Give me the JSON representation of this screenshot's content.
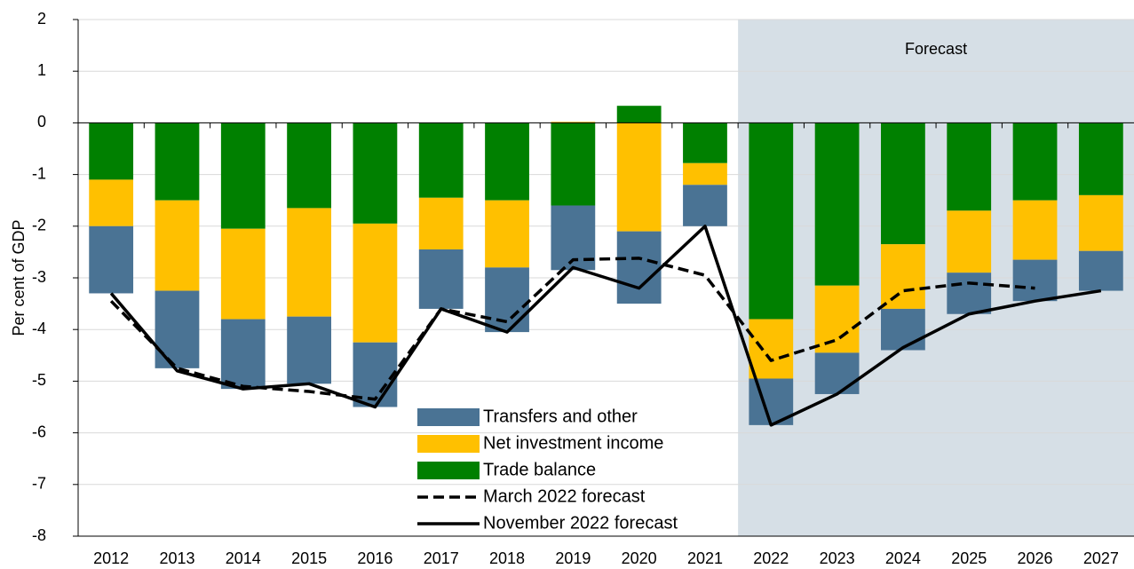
{
  "chart_data": {
    "type": "bar",
    "y_label": "Per cent of GDP",
    "annotation": "Forecast",
    "shaded_from": "2022",
    "categories": [
      "2012",
      "2013",
      "2014",
      "2015",
      "2016",
      "2017",
      "2018",
      "2019",
      "2020",
      "2021",
      "2022",
      "2023",
      "2024",
      "2025",
      "2026",
      "2027"
    ],
    "series": [
      {
        "name": "Transfers and other",
        "type": "bar",
        "color": "#4a7394",
        "values": [
          -1.3,
          -1.5,
          -1.35,
          -1.3,
          -1.25,
          -1.15,
          -1.25,
          -1.25,
          -1.4,
          -0.8,
          -0.9,
          -0.8,
          -0.8,
          -0.8,
          -0.8,
          -0.77
        ]
      },
      {
        "name": "Net investment income",
        "type": "bar",
        "color": "#ffc000",
        "values": [
          -0.9,
          -1.75,
          -1.75,
          -2.1,
          -2.3,
          -1.0,
          -1.3,
          0.02,
          -2.1,
          -0.42,
          -1.15,
          -1.3,
          -1.25,
          -1.2,
          -1.15,
          -1.08
        ]
      },
      {
        "name": "Trade balance",
        "type": "bar",
        "color": "#008000",
        "values": [
          -1.1,
          -1.5,
          -2.05,
          -1.65,
          -1.95,
          -1.45,
          -1.5,
          -1.6,
          0.33,
          -0.78,
          -3.8,
          -3.15,
          -2.35,
          -1.7,
          -1.5,
          -1.4
        ]
      },
      {
        "name": "March 2022 forecast",
        "type": "line",
        "dashed": true,
        "color": "#000000",
        "values": [
          -3.45,
          -4.75,
          -5.1,
          -5.2,
          -5.35,
          -3.6,
          -3.85,
          -2.65,
          -2.62,
          -2.95,
          -4.6,
          -4.2,
          -3.25,
          -3.1,
          -3.2,
          null
        ]
      },
      {
        "name": "November 2022 forecast",
        "type": "line",
        "dashed": false,
        "color": "#000000",
        "values": [
          -3.3,
          -4.8,
          -5.15,
          -5.05,
          -5.5,
          -3.6,
          -4.05,
          -2.8,
          -3.2,
          -2.0,
          -5.85,
          -5.25,
          -4.35,
          -3.7,
          -3.45,
          -3.25
        ]
      }
    ],
    "ylim": [
      -8,
      2
    ],
    "yticks": [
      -8,
      -7,
      -6,
      -5,
      -4,
      -3,
      -2,
      -1,
      0,
      1,
      2
    ],
    "grid": true,
    "legend": "bottom-center"
  }
}
